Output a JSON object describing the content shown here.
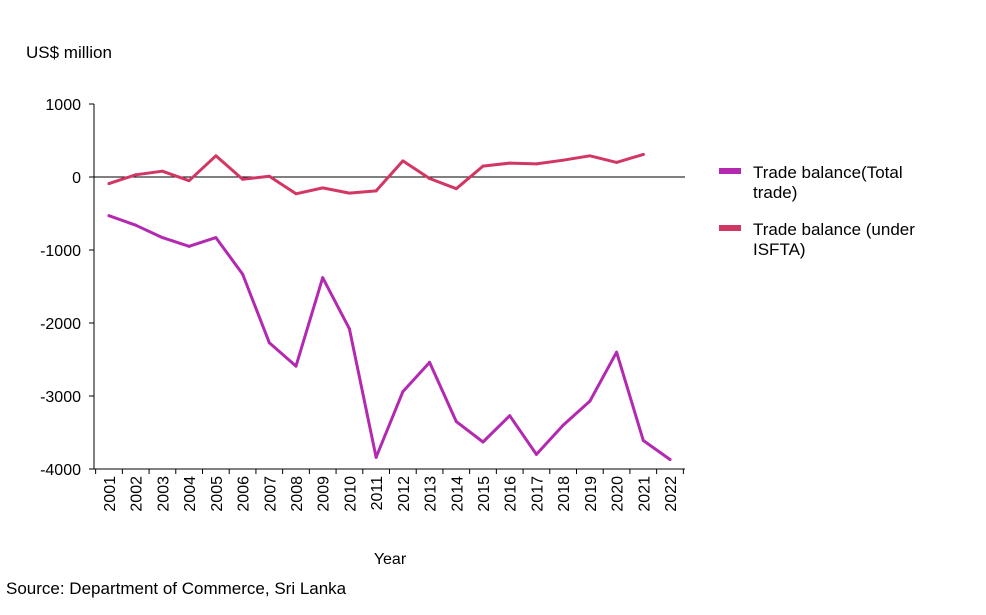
{
  "unit_label": "US$ million",
  "source": "Source: Department of Commerce, Sri Lanka",
  "colors": {
    "total": "#B32AB0",
    "isfta": "#D23763",
    "axis": "#000000"
  },
  "chart_data": {
    "type": "line",
    "title": "",
    "xlabel": "Year",
    "ylabel": "US$ million",
    "ylim": [
      -4000,
      1000
    ],
    "yticks": [
      "1000",
      "0",
      "-1000",
      "-2000",
      "-3000",
      "-4000"
    ],
    "categories": [
      "2001",
      "2002",
      "2003",
      "2004",
      "2005",
      "2006",
      "2007",
      "2008",
      "2009",
      "2010",
      "2011",
      "2012",
      "2013",
      "2014",
      "2015",
      "2016",
      "2017",
      "2018",
      "2019",
      "2020",
      "2021",
      "2022"
    ],
    "grid": false,
    "legend_position": "right",
    "series": [
      {
        "key": "total",
        "name": "Trade balance(Total trade)",
        "legend_lines": [
          "Trade balance(Total",
          "trade)"
        ],
        "values": [
          -530,
          -660,
          -830,
          -950,
          -830,
          -1330,
          -2270,
          -2590,
          -1380,
          -2080,
          -3840,
          -2940,
          -2540,
          -3350,
          -3630,
          -3270,
          -3800,
          -3400,
          -3070,
          -2400,
          -3610,
          -3870
        ]
      },
      {
        "key": "isfta",
        "name": "Trade balance (under ISFTA)",
        "legend_lines": [
          "Trade balance (under",
          "ISFTA)"
        ],
        "values": [
          -90,
          30,
          80,
          -50,
          290,
          -30,
          10,
          -230,
          -150,
          -220,
          -190,
          220,
          -20,
          -160,
          150,
          190,
          180,
          230,
          290,
          200,
          310,
          null
        ]
      }
    ]
  }
}
